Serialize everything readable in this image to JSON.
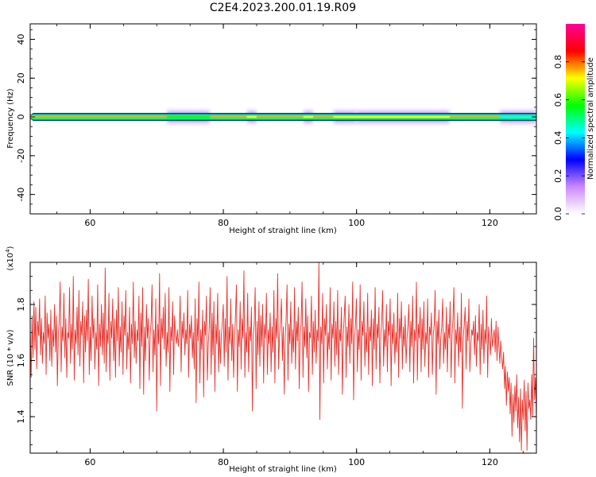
{
  "title": "C2E4.2023.200.01.19.R09",
  "colors": {
    "snr_line": "#e8312a",
    "axis": "#000000"
  },
  "chart_data": [
    {
      "type": "heatmap",
      "xlabel": "Height of straight line (km)",
      "ylabel": "Frequency (Hz)",
      "xlim": [
        51.0,
        127.0
      ],
      "ylim": [
        -50,
        48
      ],
      "xticks": [
        60,
        80,
        100,
        120
      ],
      "yticks": [
        40,
        20,
        0,
        -20,
        -40
      ],
      "x_tick_labels": [
        "60",
        "80",
        "100",
        "120"
      ],
      "y_tick_labels": [
        "40",
        "20",
        "0",
        "-20",
        "-40"
      ],
      "colorbar": {
        "label": "Normalized spectral amplitude",
        "range": [
          0.0,
          1.0
        ],
        "ticks": [
          0.0,
          0.2,
          0.4,
          0.6,
          0.8
        ],
        "tick_labels": [
          "0.0",
          "0.2",
          "0.4",
          "0.6",
          "0.8"
        ],
        "colormap": [
          "#ffffff",
          "#cc88ff",
          "#0000ff",
          "#00ffff",
          "#00ff00",
          "#ffff00",
          "#ff0000",
          "#ff0099"
        ]
      },
      "band_frequency_hz": 0,
      "band_halfwidth_hz": 1.5,
      "weak_segments": [
        {
          "x_start": 71.5,
          "x_end": 78,
          "amplitude": 0.55
        },
        {
          "x_start": 83.5,
          "x_end": 85,
          "amplitude": 0.6
        },
        {
          "x_start": 92,
          "x_end": 93.5,
          "amplitude": 0.6
        },
        {
          "x_start": 96.5,
          "x_end": 100,
          "amplitude": 0.6
        },
        {
          "x_start": 100,
          "x_end": 114,
          "amplitude": 0.65
        },
        {
          "x_start": 121.5,
          "x_end": 127,
          "amplitude": 0.3
        }
      ]
    },
    {
      "type": "line",
      "xlabel": "Height of straight line (km)",
      "ylabel": "SNR (10 * v/v)",
      "y_multiplier_label": "(x10",
      "y_multiplier_exp": "4",
      "y_multiplier_close": ")",
      "xlim": [
        51.0,
        127.0
      ],
      "ylim": [
        12700,
        19500
      ],
      "xticks": [
        60,
        80,
        100,
        120
      ],
      "yticks": [
        14000,
        16000,
        18000
      ],
      "x_tick_labels": [
        "60",
        "80",
        "100",
        "120"
      ],
      "y_tick_labels": [
        "1.4",
        "1.6",
        "1.8"
      ],
      "series": [
        {
          "x_start": 51.0,
          "x_end": 127.0,
          "values": [
            17200,
            15400,
            17600,
            16100,
            18100,
            16400,
            17900,
            15700,
            17400,
            16900,
            18200,
            16200,
            17500,
            15900,
            17000,
            16600,
            18300,
            15500,
            17700,
            16800,
            17300,
            16000,
            17800,
            15800,
            17100,
            16500,
            18000,
            16300,
            17600,
            15100,
            16900,
            17400,
            18800,
            15600,
            17200,
            16700,
            18400,
            16100,
            17500,
            15400,
            17000,
            16800,
            18600,
            15900,
            17300,
            16400,
            19000,
            15300,
            17100,
            16600,
            17900,
            16200,
            18500,
            15800,
            17400,
            16900,
            18100,
            15200,
            17600,
            16300,
            17800,
            16700,
            18900,
            15500,
            17200,
            16000,
            18300,
            16800,
            17500,
            15700,
            17000,
            16400,
            18700,
            15100,
            17300,
            16500,
            18000,
            16200,
            17700,
            15900,
            19300,
            15600,
            17100,
            16600,
            18400,
            15300,
            17400,
            16800,
            18200,
            16000,
            17500,
            15400,
            17800,
            16700,
            18600,
            15800,
            17200,
            16300,
            18100,
            15500,
            17600,
            16900,
            18500,
            15700,
            17000,
            16400,
            17900,
            15200,
            17300,
            16600,
            18800,
            16100,
            17400,
            15900,
            17100,
            16700,
            18300,
            15000,
            17700,
            16500,
            18600,
            14800,
            17200,
            16000,
            18000,
            16800,
            17500,
            15300,
            16900,
            17400,
            18700,
            15600,
            17100,
            16200,
            18200,
            14200,
            17300,
            16600,
            19100,
            15100,
            17500,
            16800,
            17900,
            16400,
            18400,
            15800,
            17000,
            16300,
            18600,
            14900,
            17200,
            16700,
            18100,
            15500,
            17600,
            16900,
            16600,
            17100,
            16500,
            17000,
            18300,
            15600,
            17400,
            16800,
            17700,
            16200,
            17100,
            16600,
            18500,
            15400,
            17300,
            16800,
            17600,
            16100,
            17000,
            15700,
            18200,
            14500,
            17500,
            16700,
            18800,
            15200,
            17100,
            16400,
            17800,
            14700,
            17400,
            16900,
            18300,
            15300,
            16600,
            17200,
            18600,
            15500,
            17700,
            16200,
            18100,
            14900,
            17300,
            16600,
            18400,
            15600,
            17100,
            15900,
            16900,
            17400,
            18000,
            15800,
            17500,
            16300,
            19000,
            15300,
            17200,
            16600,
            18200,
            16000,
            17300,
            15400,
            16800,
            17600,
            18700,
            14900,
            17100,
            16500,
            18100,
            15700,
            17500,
            16800,
            19200,
            15400,
            17000,
            16300,
            18400,
            15600,
            17200,
            16700,
            17900,
            14200,
            16900,
            17300,
            18600,
            15000,
            17400,
            16200,
            18100,
            15800,
            17600,
            16500,
            18000,
            15200,
            17300,
            16800,
            18400,
            15500,
            17100,
            16600,
            17700,
            15600,
            17200,
            16300,
            18500,
            15200,
            17500,
            16800,
            19100,
            15700,
            16900,
            17400,
            18200,
            16000,
            17200,
            14800,
            16800,
            17500,
            18700,
            15300,
            17300,
            16600,
            18100,
            15900,
            17100,
            16300,
            18600,
            15700,
            17400,
            16700,
            17900,
            15000,
            16900,
            17300,
            18800,
            15400,
            17200,
            16500,
            18200,
            16100,
            17600,
            14900,
            17000,
            16800,
            18300,
            15500,
            17400,
            16300,
            17800,
            15900,
            17100,
            16700,
            19500,
            13900,
            17200,
            16600,
            18400,
            15200,
            17500,
            16900,
            18000,
            15700,
            17000,
            16400,
            18600,
            15300,
            17300,
            16800,
            18100,
            15800,
            17400,
            16200,
            18500,
            15500,
            17100,
            16700,
            17900,
            14800,
            16900,
            17600,
            18300,
            15400,
            17200,
            16500,
            18000,
            15900,
            17500,
            16600,
            18800,
            14600,
            16800,
            17300,
            18200,
            15600,
            17100,
            16400,
            18700,
            15300,
            17400,
            16900,
            18100,
            15800,
            17000,
            16300,
            18400,
            15500,
            17200,
            16700,
            17800,
            15100,
            17500,
            16400,
            18600,
            15700,
            17300,
            16800,
            17900,
            15200,
            16900,
            17400,
            18500,
            15800,
            17100,
            16500,
            18000,
            15600,
            17400,
            16900,
            18200,
            15100,
            17300,
            16600,
            17700,
            15900,
            17000,
            16300,
            18400,
            15400,
            17500,
            16800,
            18100,
            15700,
            17200,
            16500,
            17600,
            15900,
            16800,
            17300,
            18000,
            15600,
            17400,
            16500,
            18300,
            15200,
            17100,
            16700,
            18800,
            15300,
            17300,
            16800,
            17900,
            15600,
            17500,
            16400,
            18100,
            15800,
            17000,
            16600,
            18200,
            15400,
            17200,
            16900,
            17700,
            15500,
            16900,
            17300,
            18500,
            14800,
            17400,
            16600,
            17800,
            15700,
            16800,
            17200,
            18200,
            15900,
            17000,
            16400,
            17900,
            15600,
            17300,
            16800,
            18100,
            15400,
            16900,
            17500,
            18600,
            15200,
            17100,
            16600,
            17700,
            15800,
            17200,
            16300,
            18400,
            14300,
            16800,
            17300,
            17900,
            15700,
            17400,
            16700,
            18200,
            15600,
            16500,
            17100,
            16900,
            17400,
            16200,
            17600,
            15800,
            17000,
            16700,
            18000,
            15500,
            17300,
            16400,
            17800,
            15900,
            17100,
            16600,
            18300,
            15400,
            17200,
            16700,
            16200,
            17500,
            16500,
            16800,
            17100,
            16300,
            17400,
            16000,
            17200,
            16500,
            15900,
            16700,
            16100,
            15700,
            16300,
            15000,
            15800,
            14400,
            15600,
            14900,
            15400,
            14100,
            15200,
            13300,
            14800,
            13800,
            15100,
            14200,
            15500,
            13600,
            14700,
            13100,
            15000,
            12800,
            14600,
            13900,
            15300,
            13500,
            14900,
            12800,
            15200,
            14300,
            14600,
            13900,
            15500,
            14000,
            16800,
            14600,
            15400,
            13900
          ]
        }
      ]
    }
  ]
}
